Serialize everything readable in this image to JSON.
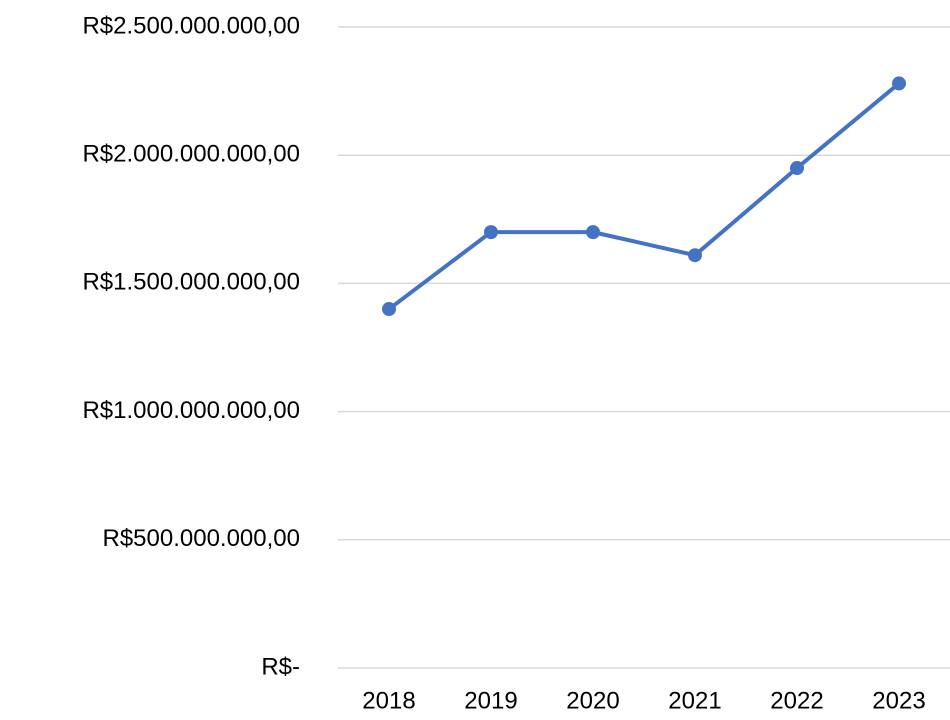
{
  "chart_data": {
    "type": "line",
    "categories": [
      "2018",
      "2019",
      "2020",
      "2021",
      "2022",
      "2023"
    ],
    "series": [
      {
        "color": "#4472c4",
        "values": [
          1400000000,
          1700000000,
          1700000000,
          1610000000,
          1950000000,
          2280000000
        ]
      }
    ],
    "ylim": [
      0,
      2500000000
    ],
    "yticks": [
      {
        "value": 0,
        "label": "R$-"
      },
      {
        "value": 500000000,
        "label": "R$500.000.000,00"
      },
      {
        "value": 1000000000,
        "label": "R$1.000.000.000,00"
      },
      {
        "value": 1500000000,
        "label": "R$1.500.000.000,00"
      },
      {
        "value": 2000000000,
        "label": "R$2.000.000.000,00"
      },
      {
        "value": 2500000000,
        "label": "R$2.500.000.000,00"
      }
    ],
    "grid": true
  }
}
